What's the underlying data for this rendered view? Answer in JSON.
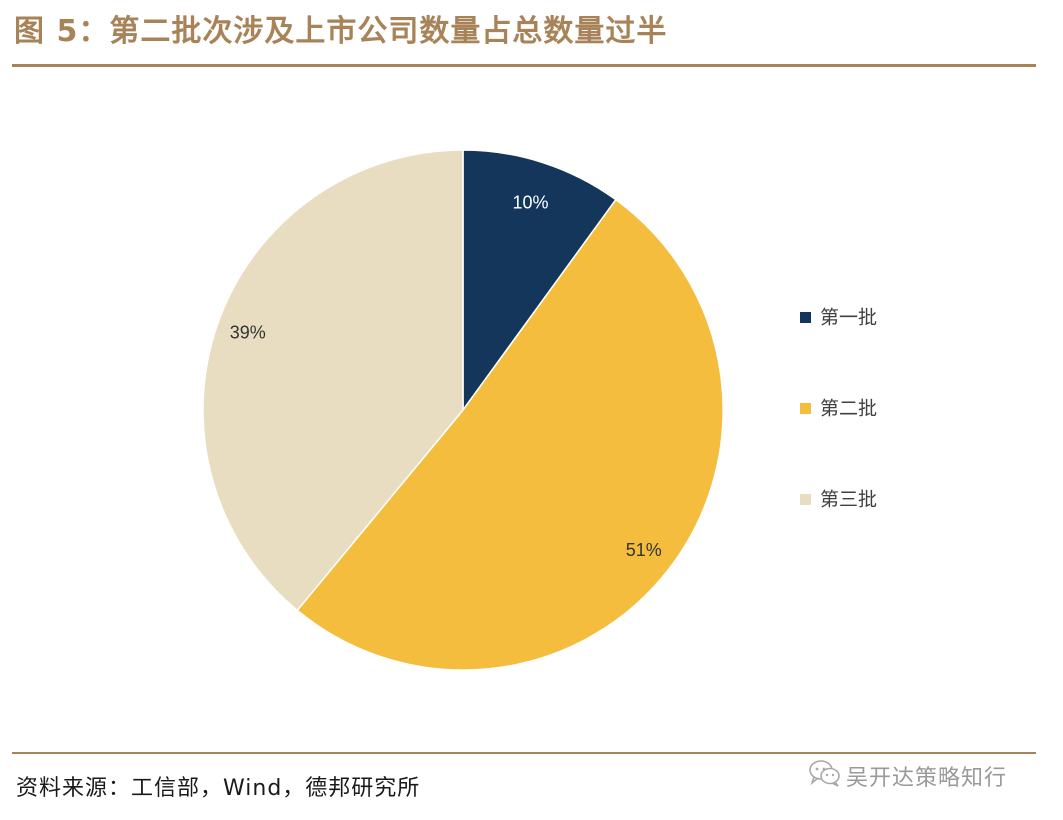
{
  "title": "图 5：第二批次涉及上市公司数量占总数量过半",
  "source": "资料来源：工信部，Wind，德邦研究所",
  "watermark": "吴开达策略知行",
  "chart_data": {
    "type": "pie",
    "start_angle_deg": 0,
    "direction": "clockwise",
    "legend_position": "right",
    "slices": [
      {
        "label": "第一批",
        "value": 10,
        "value_label": "10%",
        "color": "#14365a",
        "label_color": "#ffffff"
      },
      {
        "label": "第二批",
        "value": 51,
        "value_label": "51%",
        "color": "#f4bd3e",
        "label_color": "#333333"
      },
      {
        "label": "第三批",
        "value": 39,
        "value_label": "39%",
        "color": "#e8dcc1",
        "label_color": "#333333"
      }
    ]
  }
}
